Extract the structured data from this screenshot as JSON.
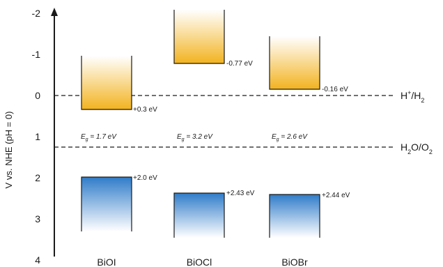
{
  "diagram": {
    "y_axis": {
      "label": "V vs. NHE (pH = 0)",
      "ticks": [
        "-2",
        "-1",
        "0",
        "1",
        "2",
        "3",
        "4"
      ],
      "range": [
        -2,
        4
      ]
    },
    "reference_lines": [
      {
        "id": "h",
        "value": 0,
        "label_main": "H",
        "label_sup": "+",
        "label_mid": "/H",
        "label_sub": "2",
        "label_tail": ""
      },
      {
        "id": "o",
        "value": 1.23,
        "label_main": "H",
        "label_sub": "2",
        "label_mid": "O/O",
        "label_sub2": "2"
      }
    ],
    "materials": [
      {
        "name": "BiOI",
        "cb_label": "+0.3 eV",
        "cb_value": 0.3,
        "cb_top_value": -1.0,
        "vb_label": "+2.0 eV",
        "vb_value": 2.0,
        "vb_bottom_value": 3.4,
        "gap_symbol": "E",
        "gap_sub": "g",
        "gap_text": " = 1.7 eV"
      },
      {
        "name": "BiOCl",
        "cb_label": "-0.77 eV",
        "cb_value": -0.77,
        "cb_top_value": -2.0,
        "vb_label": "+2.43 eV",
        "vb_value": 2.43,
        "vb_bottom_value": 3.5,
        "gap_symbol": "E",
        "gap_sub": "g",
        "gap_text": " = 3.2 eV"
      },
      {
        "name": "BiOBr",
        "cb_label": "-0.16 eV",
        "cb_value": -0.16,
        "cb_top_value": -1.5,
        "vb_label": "+2.44 eV",
        "vb_value": 2.44,
        "vb_bottom_value": 3.5,
        "gap_symbol": "E",
        "gap_sub": "g",
        "gap_text": " = 2.6 eV"
      }
    ],
    "colors": {
      "cb_top": "#ffffff",
      "cb_bottom": "#f2b320",
      "vb_top": "#2f7cc9",
      "vb_bottom": "#ffffff",
      "axis": "#1a1a1a"
    }
  }
}
